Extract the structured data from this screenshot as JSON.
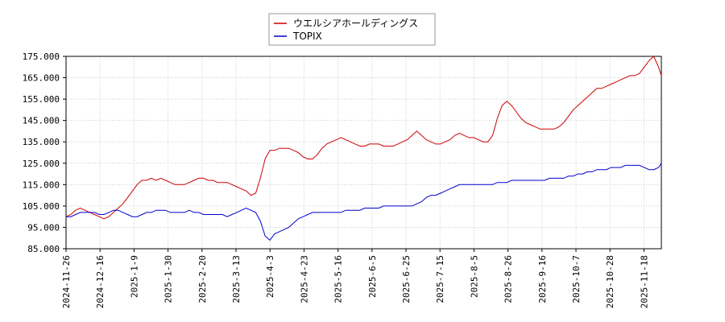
{
  "chart_data": {
    "type": "line",
    "title": "",
    "xlabel": "",
    "ylabel": "",
    "ylim": [
      85,
      175
    ],
    "y_ticks": [
      "85.000",
      "95.000",
      "105.000",
      "115.000",
      "125.000",
      "135.000",
      "145.000",
      "155.000",
      "165.000",
      "175.000"
    ],
    "x_ticks": [
      "2024-11-26",
      "2024-12-16",
      "2025-1-9",
      "2025-1-30",
      "2025-2-20",
      "2025-3-13",
      "2025-4-3",
      "2025-4-23",
      "2025-5-16",
      "2025-6-5",
      "2025-6-25",
      "2025-7-15",
      "2025-8-5",
      "2025-8-26",
      "2025-9-16",
      "2025-10-7",
      "2025-10-28",
      "2025-11-18"
    ],
    "grid": true,
    "legend_position": "top-center",
    "series": [
      {
        "name": "ウエルシアホールディングス",
        "color": "#cc0000",
        "points": [
          [
            0,
            100
          ],
          [
            5,
            101
          ],
          [
            10,
            103
          ],
          [
            15,
            104
          ],
          [
            20,
            103
          ],
          [
            25,
            102
          ],
          [
            30,
            101
          ],
          [
            35,
            100
          ],
          [
            40,
            99
          ],
          [
            45,
            100
          ],
          [
            50,
            102
          ],
          [
            55,
            104
          ],
          [
            60,
            106
          ],
          [
            65,
            109
          ],
          [
            70,
            112
          ],
          [
            75,
            115
          ],
          [
            80,
            117
          ],
          [
            85,
            117
          ],
          [
            90,
            118
          ],
          [
            95,
            117
          ],
          [
            100,
            118
          ],
          [
            105,
            117
          ],
          [
            110,
            116
          ],
          [
            115,
            115
          ],
          [
            120,
            115
          ],
          [
            125,
            115
          ],
          [
            130,
            116
          ],
          [
            135,
            117
          ],
          [
            140,
            118
          ],
          [
            145,
            118
          ],
          [
            150,
            117
          ],
          [
            155,
            117
          ],
          [
            160,
            116
          ],
          [
            165,
            116
          ],
          [
            170,
            116
          ],
          [
            175,
            115
          ],
          [
            180,
            114
          ],
          [
            185,
            113
          ],
          [
            190,
            112
          ],
          [
            195,
            110
          ],
          [
            200,
            111
          ],
          [
            205,
            118
          ],
          [
            210,
            127
          ],
          [
            215,
            131
          ],
          [
            220,
            131
          ],
          [
            225,
            132
          ],
          [
            230,
            132
          ],
          [
            235,
            132
          ],
          [
            240,
            131
          ],
          [
            245,
            130
          ],
          [
            250,
            128
          ],
          [
            255,
            127
          ],
          [
            260,
            127
          ],
          [
            265,
            129
          ],
          [
            270,
            132
          ],
          [
            275,
            134
          ],
          [
            280,
            135
          ],
          [
            285,
            136
          ],
          [
            290,
            137
          ],
          [
            295,
            136
          ],
          [
            300,
            135
          ],
          [
            305,
            134
          ],
          [
            310,
            133
          ],
          [
            315,
            133
          ],
          [
            320,
            134
          ],
          [
            325,
            134
          ],
          [
            330,
            134
          ],
          [
            335,
            133
          ],
          [
            340,
            133
          ],
          [
            345,
            133
          ],
          [
            350,
            134
          ],
          [
            355,
            135
          ],
          [
            360,
            136
          ],
          [
            365,
            138
          ],
          [
            370,
            140
          ],
          [
            375,
            138
          ],
          [
            380,
            136
          ],
          [
            385,
            135
          ],
          [
            390,
            134
          ],
          [
            395,
            134
          ],
          [
            400,
            135
          ],
          [
            405,
            136
          ],
          [
            410,
            138
          ],
          [
            415,
            139
          ],
          [
            420,
            138
          ],
          [
            425,
            137
          ],
          [
            430,
            137
          ],
          [
            435,
            136
          ],
          [
            440,
            135
          ],
          [
            445,
            135
          ],
          [
            450,
            138
          ],
          [
            455,
            146
          ],
          [
            460,
            152
          ],
          [
            465,
            154
          ],
          [
            470,
            152
          ],
          [
            475,
            149
          ],
          [
            480,
            146
          ],
          [
            485,
            144
          ],
          [
            490,
            143
          ],
          [
            495,
            142
          ],
          [
            500,
            141
          ],
          [
            505,
            141
          ],
          [
            510,
            141
          ],
          [
            515,
            141
          ],
          [
            520,
            142
          ],
          [
            525,
            144
          ],
          [
            530,
            147
          ],
          [
            535,
            150
          ],
          [
            540,
            152
          ],
          [
            545,
            154
          ],
          [
            550,
            156
          ],
          [
            555,
            158
          ],
          [
            560,
            160
          ],
          [
            565,
            160
          ],
          [
            570,
            161
          ],
          [
            575,
            162
          ],
          [
            580,
            163
          ],
          [
            585,
            164
          ],
          [
            590,
            165
          ],
          [
            595,
            166
          ],
          [
            600,
            166
          ],
          [
            605,
            167
          ],
          [
            610,
            170
          ],
          [
            615,
            173
          ],
          [
            620,
            175
          ],
          [
            625,
            170
          ],
          [
            628,
            166
          ]
        ]
      },
      {
        "name": "TOPIX",
        "color": "#0000cc",
        "points": [
          [
            0,
            100
          ],
          [
            5,
            100
          ],
          [
            10,
            101
          ],
          [
            15,
            102
          ],
          [
            20,
            102
          ],
          [
            25,
            102
          ],
          [
            30,
            102
          ],
          [
            35,
            101
          ],
          [
            40,
            101
          ],
          [
            45,
            102
          ],
          [
            50,
            103
          ],
          [
            55,
            103
          ],
          [
            60,
            102
          ],
          [
            65,
            101
          ],
          [
            70,
            100
          ],
          [
            75,
            100
          ],
          [
            80,
            101
          ],
          [
            85,
            102
          ],
          [
            90,
            102
          ],
          [
            95,
            103
          ],
          [
            100,
            103
          ],
          [
            105,
            103
          ],
          [
            110,
            102
          ],
          [
            115,
            102
          ],
          [
            120,
            102
          ],
          [
            125,
            102
          ],
          [
            130,
            103
          ],
          [
            135,
            102
          ],
          [
            140,
            102
          ],
          [
            145,
            101
          ],
          [
            150,
            101
          ],
          [
            155,
            101
          ],
          [
            160,
            101
          ],
          [
            165,
            101
          ],
          [
            170,
            100
          ],
          [
            175,
            101
          ],
          [
            180,
            102
          ],
          [
            185,
            103
          ],
          [
            190,
            104
          ],
          [
            195,
            103
          ],
          [
            200,
            102
          ],
          [
            205,
            98
          ],
          [
            210,
            91
          ],
          [
            215,
            89
          ],
          [
            220,
            92
          ],
          [
            225,
            93
          ],
          [
            230,
            94
          ],
          [
            235,
            95
          ],
          [
            240,
            97
          ],
          [
            245,
            99
          ],
          [
            250,
            100
          ],
          [
            255,
            101
          ],
          [
            260,
            102
          ],
          [
            265,
            102
          ],
          [
            270,
            102
          ],
          [
            275,
            102
          ],
          [
            280,
            102
          ],
          [
            285,
            102
          ],
          [
            290,
            102
          ],
          [
            295,
            103
          ],
          [
            300,
            103
          ],
          [
            305,
            103
          ],
          [
            310,
            103
          ],
          [
            315,
            104
          ],
          [
            320,
            104
          ],
          [
            325,
            104
          ],
          [
            330,
            104
          ],
          [
            335,
            105
          ],
          [
            340,
            105
          ],
          [
            345,
            105
          ],
          [
            350,
            105
          ],
          [
            355,
            105
          ],
          [
            360,
            105
          ],
          [
            365,
            105
          ],
          [
            370,
            106
          ],
          [
            375,
            107
          ],
          [
            380,
            109
          ],
          [
            385,
            110
          ],
          [
            390,
            110
          ],
          [
            395,
            111
          ],
          [
            400,
            112
          ],
          [
            405,
            113
          ],
          [
            410,
            114
          ],
          [
            415,
            115
          ],
          [
            420,
            115
          ],
          [
            425,
            115
          ],
          [
            430,
            115
          ],
          [
            435,
            115
          ],
          [
            440,
            115
          ],
          [
            445,
            115
          ],
          [
            450,
            115
          ],
          [
            455,
            116
          ],
          [
            460,
            116
          ],
          [
            465,
            116
          ],
          [
            470,
            117
          ],
          [
            475,
            117
          ],
          [
            480,
            117
          ],
          [
            485,
            117
          ],
          [
            490,
            117
          ],
          [
            495,
            117
          ],
          [
            500,
            117
          ],
          [
            505,
            117
          ],
          [
            510,
            118
          ],
          [
            515,
            118
          ],
          [
            520,
            118
          ],
          [
            525,
            118
          ],
          [
            530,
            119
          ],
          [
            535,
            119
          ],
          [
            540,
            120
          ],
          [
            545,
            120
          ],
          [
            550,
            121
          ],
          [
            555,
            121
          ],
          [
            560,
            122
          ],
          [
            565,
            122
          ],
          [
            570,
            122
          ],
          [
            575,
            123
          ],
          [
            580,
            123
          ],
          [
            585,
            123
          ],
          [
            590,
            124
          ],
          [
            595,
            124
          ],
          [
            600,
            124
          ],
          [
            605,
            124
          ],
          [
            610,
            123
          ],
          [
            615,
            122
          ],
          [
            620,
            122
          ],
          [
            625,
            123
          ],
          [
            628,
            125
          ]
        ]
      }
    ]
  }
}
